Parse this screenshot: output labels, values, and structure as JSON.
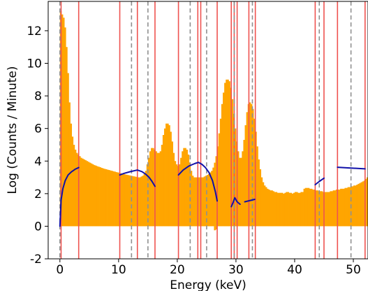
{
  "chart_data": {
    "type": "bar",
    "xlabel": "Energy (keV)",
    "ylabel": "Log (Counts / Minute)",
    "xlim": [
      -2,
      52.5
    ],
    "ylim": [
      -2,
      13.8
    ],
    "xticks": [
      0,
      10,
      20,
      30,
      40,
      50
    ],
    "yticks": [
      -2,
      0,
      2,
      4,
      6,
      8,
      10,
      12
    ],
    "grid": false,
    "legend": "none",
    "colors": {
      "spectrum": "#ffa500",
      "fit": "#1010a8",
      "roi_line": "#ef5350",
      "peak_line": "#909090"
    },
    "spectrum": {
      "bin_width": 0.25,
      "x_start": 0.0,
      "values": [
        13.2,
        13.0,
        12.8,
        12.2,
        11.0,
        9.4,
        7.6,
        6.3,
        5.5,
        5.0,
        4.7,
        4.5,
        4.4,
        4.3,
        4.2,
        4.15,
        4.1,
        4.05,
        4.0,
        3.95,
        3.9,
        3.85,
        3.8,
        3.75,
        3.72,
        3.68,
        3.65,
        3.62,
        3.58,
        3.55,
        3.52,
        3.5,
        3.47,
        3.45,
        3.42,
        3.4,
        3.37,
        3.35,
        3.32,
        3.3,
        3.27,
        3.25,
        3.22,
        3.2,
        3.18,
        3.16,
        3.14,
        3.12,
        3.1,
        3.08,
        3.06,
        3.04,
        3.02,
        3.0,
        3.0,
        3.05,
        3.1,
        3.2,
        3.4,
        3.8,
        4.2,
        4.6,
        4.8,
        4.8,
        4.7,
        4.6,
        4.5,
        4.5,
        4.6,
        5.0,
        5.6,
        6.0,
        6.3,
        6.3,
        6.2,
        5.8,
        5.2,
        4.5,
        4.0,
        3.8,
        3.7,
        3.8,
        4.2,
        4.6,
        4.8,
        4.8,
        4.7,
        4.4,
        3.9,
        3.4,
        3.1,
        3.0,
        3.0,
        3.0,
        3.0,
        3.0,
        3.0,
        3.0,
        3.05,
        3.1,
        3.15,
        3.2,
        3.3,
        3.4,
        3.6,
        3.9,
        4.3,
        4.9,
        5.7,
        6.6,
        7.5,
        8.2,
        8.8,
        9.0,
        9.0,
        8.9,
        8.5,
        7.8,
        6.9,
        6.0,
        5.2,
        4.6,
        4.2,
        4.2,
        4.6,
        5.3,
        6.2,
        7.0,
        7.5,
        7.6,
        7.5,
        7.2,
        6.6,
        5.8,
        4.9,
        4.1,
        3.5,
        3.0,
        2.7,
        2.5,
        2.4,
        2.3,
        2.25,
        2.2,
        2.2,
        2.15,
        2.1,
        2.1,
        2.05,
        2.05,
        2.05,
        2.05,
        2.0,
        2.05,
        2.1,
        2.1,
        2.05,
        2.05,
        2.0,
        2.05,
        2.1,
        2.1,
        2.05,
        2.05,
        2.1,
        2.1,
        2.3,
        2.35,
        2.35,
        2.35,
        2.3,
        2.3,
        2.25,
        2.25,
        2.2,
        2.2,
        2.15,
        2.15,
        2.15,
        2.1,
        2.1,
        2.1,
        2.1,
        2.1,
        2.15,
        2.15,
        2.2,
        2.2,
        2.25,
        2.25,
        2.25,
        2.3,
        2.3,
        2.3,
        2.35,
        2.35,
        2.4,
        2.4,
        2.45,
        2.45,
        2.5,
        2.5,
        2.55,
        2.6,
        2.65,
        2.7,
        2.75,
        2.8,
        2.9,
        3.0,
        3.1,
        3.2,
        3.25,
        3.25,
        3.2,
        3.15,
        3.1,
        3.1,
        3.1,
        3.15,
        3.2,
        3.25,
        3.3,
        3.35,
        3.4,
        3.45,
        3.5,
        3.6,
        3.7,
        3.8,
        3.9,
        4.0,
        4.1,
        4.3,
        4.5,
        4.7,
        4.85,
        4.95,
        5.0,
        5.0,
        5.0,
        4.95,
        4.9,
        4.8,
        4.7,
        4.6,
        4.5,
        4.4,
        4.3,
        4.2,
        4.1,
        4.0,
        3.95,
        3.9
      ]
    },
    "dip_bins": [
      {
        "x": 26.25,
        "value": -0.25
      },
      {
        "x": 26.5,
        "value": -0.2
      }
    ],
    "roi_lines_x": [
      0.2,
      3.2,
      10.2,
      13.2,
      16.2,
      20.2,
      23.5,
      24.0,
      26.8,
      29.2,
      29.7,
      30.2,
      32.2,
      33.3,
      43.5,
      45.0,
      47.3,
      52.0
    ],
    "peak_lines_x": [
      0.0,
      12.2,
      15.0,
      22.2,
      25.0,
      29.7,
      32.8,
      44.2,
      49.6
    ],
    "fits": [
      {
        "x": [
          0.0,
          0.2,
          0.5,
          0.9,
          1.4,
          2.0,
          2.6,
          3.2
        ],
        "y": [
          0.0,
          1.6,
          2.3,
          2.8,
          3.15,
          3.35,
          3.5,
          3.6
        ]
      },
      {
        "x": [
          10.2,
          11.0,
          12.0,
          13.2,
          14.0,
          14.6,
          15.2,
          15.7,
          16.2
        ],
        "y": [
          3.15,
          3.25,
          3.35,
          3.45,
          3.35,
          3.2,
          3.0,
          2.75,
          2.45
        ]
      },
      {
        "x": [
          20.2,
          21.0,
          22.0,
          23.0,
          23.6,
          24.2,
          24.8,
          25.4,
          26.0,
          26.5,
          26.8
        ],
        "y": [
          3.15,
          3.45,
          3.7,
          3.85,
          3.92,
          3.8,
          3.6,
          3.3,
          2.8,
          2.1,
          1.55
        ]
      },
      {
        "x": [
          29.2,
          29.5,
          29.8,
          30.2,
          30.7
        ],
        "y": [
          1.2,
          1.45,
          1.75,
          1.5,
          1.35
        ]
      },
      {
        "x": [
          31.5,
          33.2
        ],
        "y": [
          1.5,
          1.65
        ]
      },
      {
        "x": [
          43.5,
          44.2,
          45.0
        ],
        "y": [
          2.55,
          2.75,
          2.95
        ]
      },
      {
        "x": [
          47.3,
          52.0
        ],
        "y": [
          3.62,
          3.52
        ]
      }
    ]
  }
}
